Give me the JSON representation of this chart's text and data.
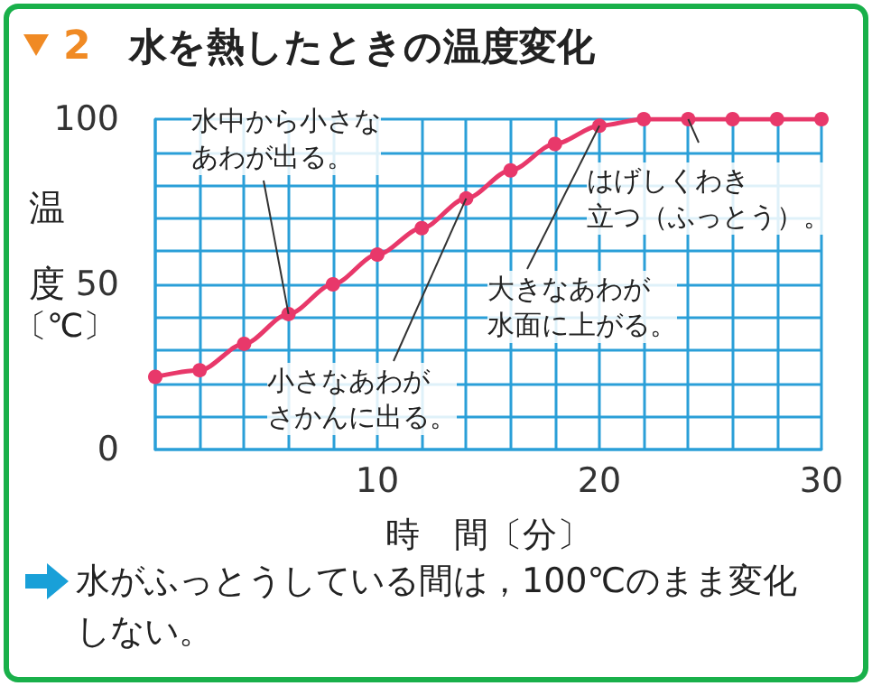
{
  "chart_data": {
    "type": "line",
    "title": "2　水を熱したときの温度変化",
    "xlabel": "時　間〔分〕",
    "ylabel": "温度〔℃〕",
    "series": [
      {
        "color": "#e8386a",
        "x": [
          0,
          2,
          4,
          6,
          8,
          10,
          12,
          14,
          16,
          18,
          20,
          22,
          24,
          26,
          28,
          30
        ],
        "values": [
          22,
          24,
          32,
          41,
          50,
          59,
          67,
          76,
          84.5,
          92.5,
          98,
          100,
          100,
          100,
          100,
          100
        ]
      }
    ],
    "xlim": [
      0,
      30
    ],
    "ylim": [
      0,
      100
    ],
    "xticks": [
      {
        "value": 0,
        "label": null
      },
      {
        "value": 2,
        "label": null
      },
      {
        "value": 4,
        "label": null
      },
      {
        "value": 6,
        "label": null
      },
      {
        "value": 8,
        "label": null
      },
      10,
      {
        "value": 12,
        "label": null
      },
      {
        "value": 14,
        "label": null
      },
      {
        "value": 16,
        "label": null
      },
      {
        "value": 18,
        "label": null
      },
      20,
      {
        "value": 22,
        "label": null
      },
      {
        "value": 24,
        "label": null
      },
      {
        "value": 26,
        "label": null
      },
      {
        "value": 28,
        "label": null
      },
      30
    ],
    "yticks": [
      0,
      {
        "value": 10,
        "label": null
      },
      {
        "value": 20,
        "label": null
      },
      {
        "value": 30,
        "label": null
      },
      {
        "value": 40,
        "label": null
      },
      50,
      {
        "value": 60,
        "label": null
      },
      {
        "value": 70,
        "label": null
      },
      {
        "value": 80,
        "label": null
      },
      {
        "value": 90,
        "label": null
      },
      100
    ],
    "grid": true,
    "marker": "circle",
    "line_style": "solid",
    "annotations": [
      {
        "text": "水中から小さなあわが出る。",
        "x": 6,
        "y": 41
      },
      {
        "text": "小さなあわがさかんに出る。",
        "x": 14,
        "y": 76
      },
      {
        "text": "大きなあわが水面に上がる。",
        "x": 20,
        "y": 98
      },
      {
        "text": "はげしくわき立つ（ふっとう）。",
        "x": 24,
        "y": 100
      },
      "水がふっとうしている間は，100℃のまま変化しない。"
    ]
  }
}
